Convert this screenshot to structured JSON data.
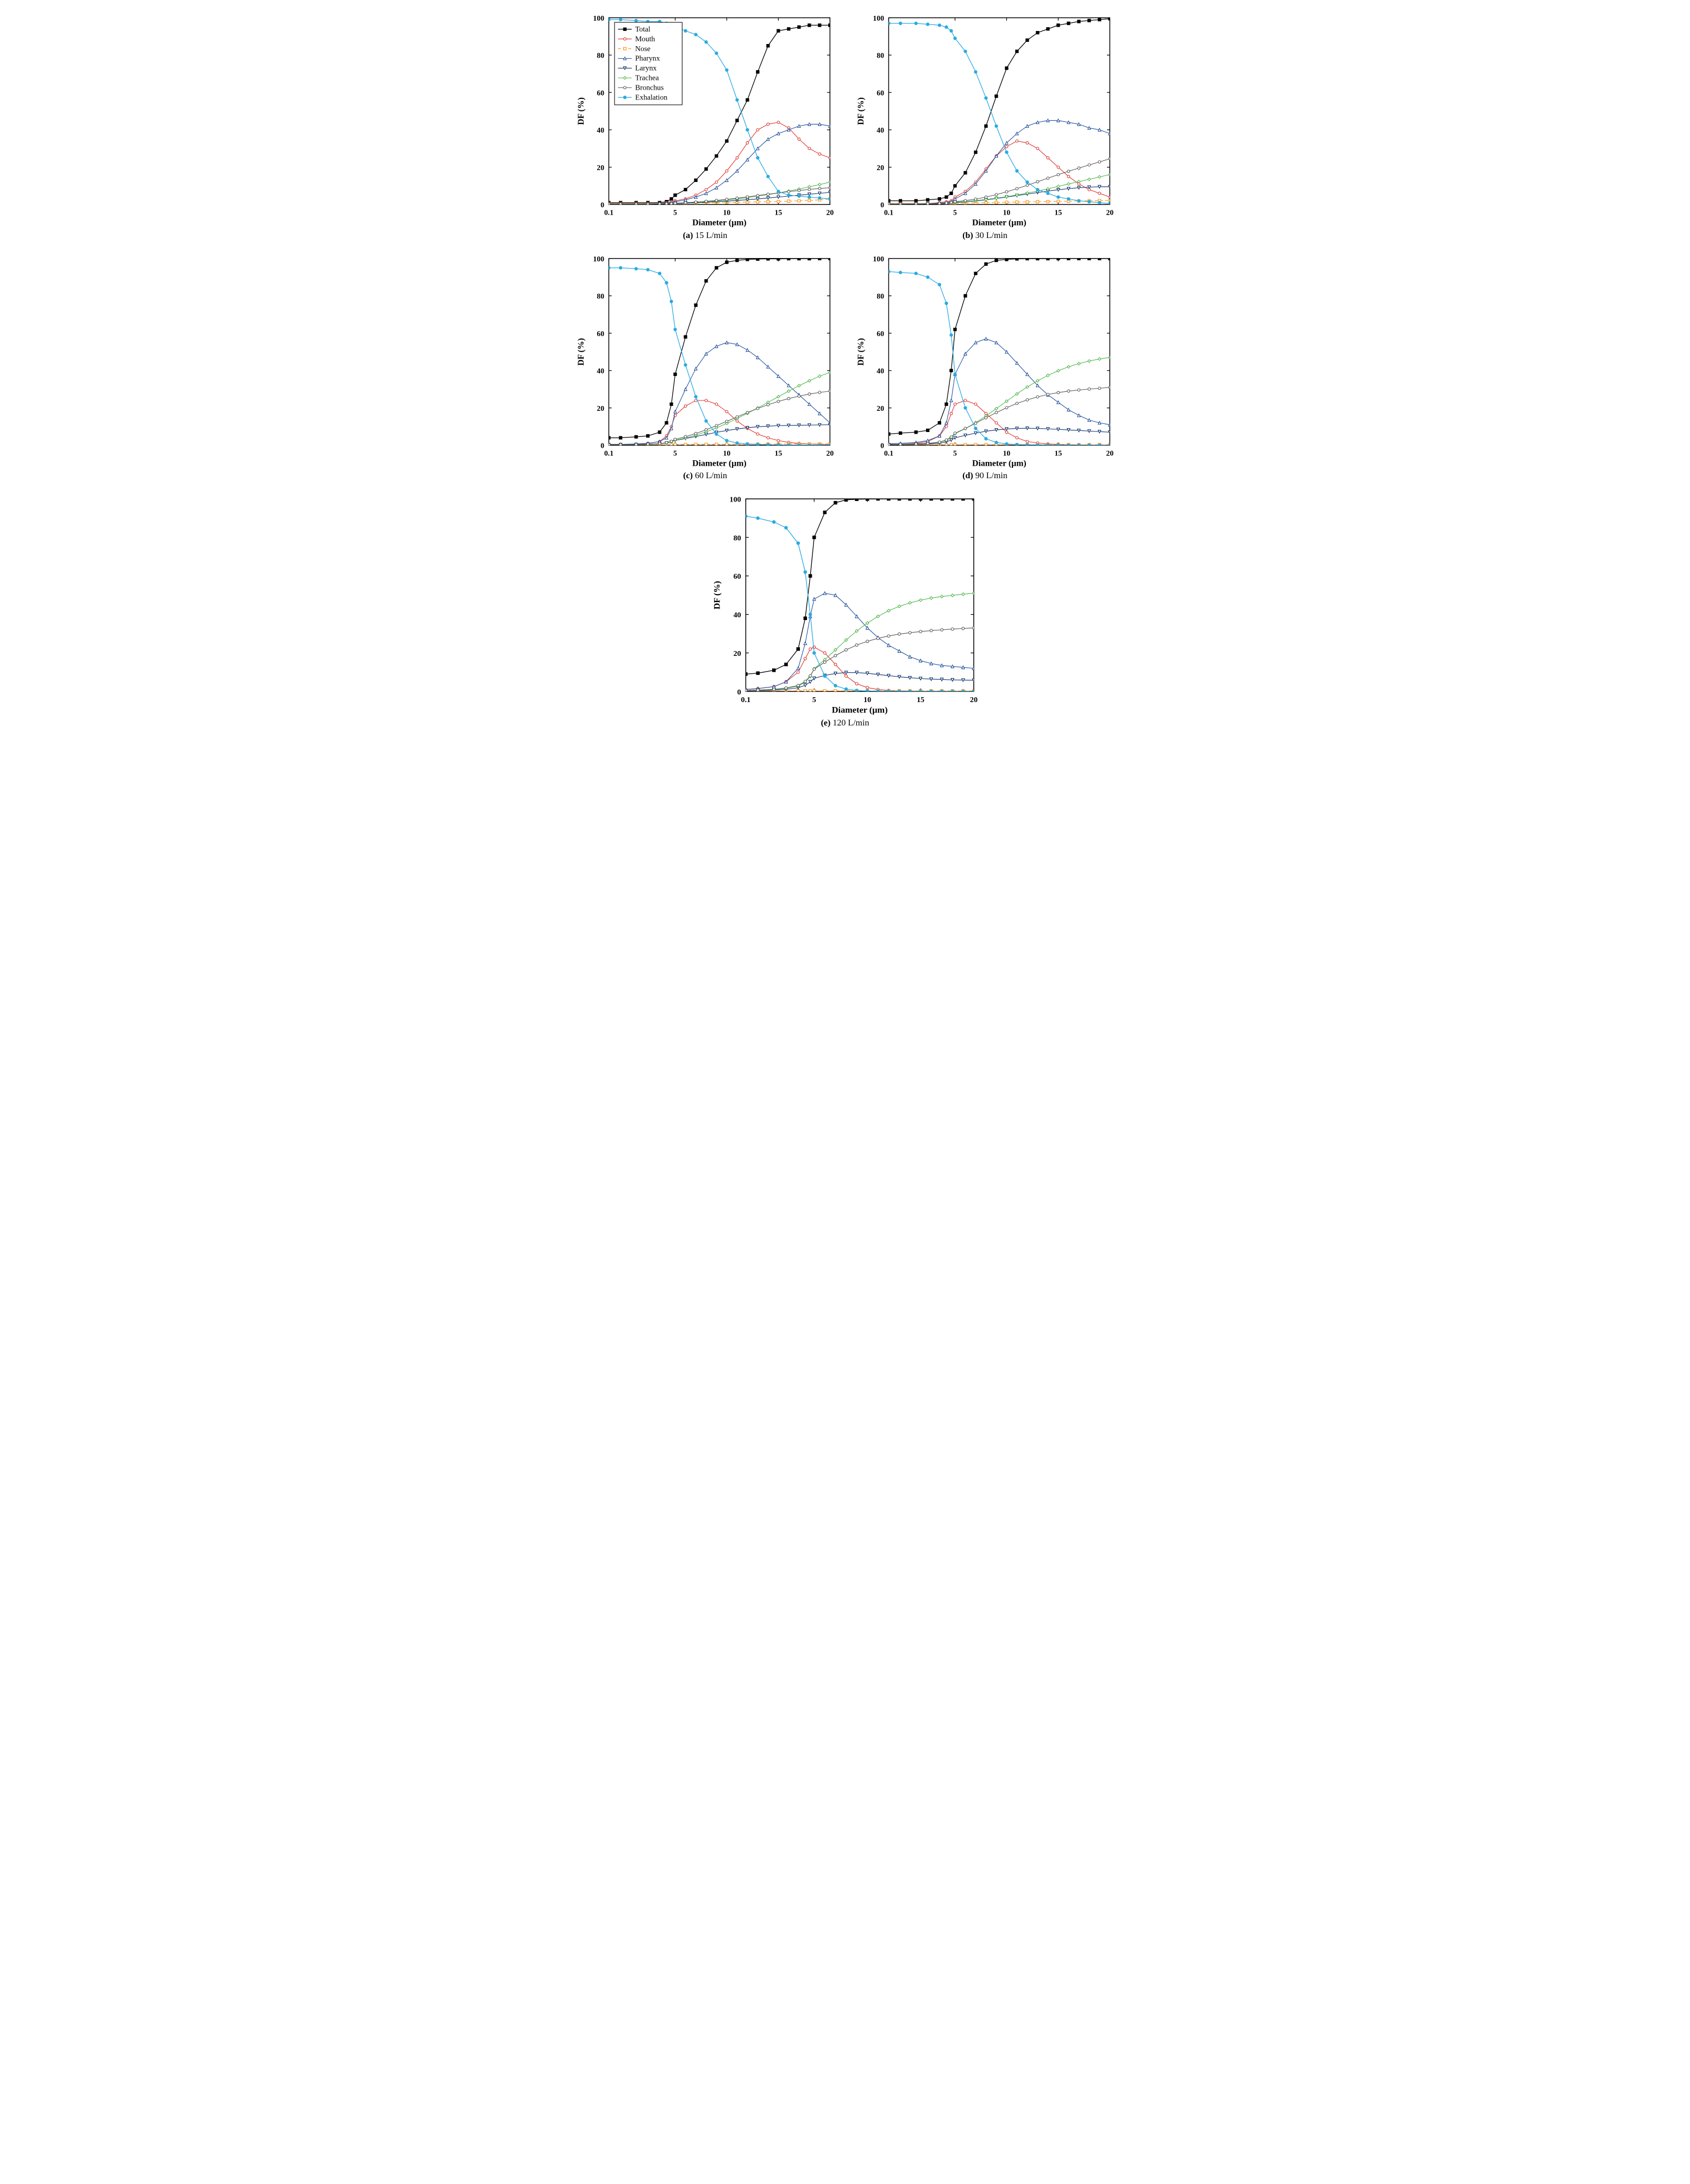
{
  "layout": {
    "grid": [
      2,
      2,
      "center"
    ],
    "panel_aspect": 1.0,
    "background_color": "#ffffff"
  },
  "axes": {
    "xlabel": "Diameter (µm)",
    "ylabel": "DF (%)",
    "label_fontsize": 15,
    "label_fontweight": "bold",
    "tick_fontsize": 13,
    "tick_fontweight": "bold",
    "xscale": "log_custom",
    "x_ticks": [
      0.1,
      5,
      10,
      15,
      20
    ],
    "x_tick_labels": [
      "0.1",
      "5",
      "10",
      "15",
      "20"
    ],
    "ylim": [
      0,
      100
    ],
    "y_ticks": [
      0,
      20,
      40,
      60,
      80,
      100
    ],
    "axis_color": "#000000",
    "axis_linewidth": 1.4,
    "tick_length": 5,
    "tick_direction": "in"
  },
  "series_style": {
    "Total": {
      "color": "#000000",
      "marker": "square-filled",
      "line": "solid",
      "lw": 1.2,
      "ms": 5
    },
    "Mouth": {
      "color": "#de2d26",
      "marker": "circle-open",
      "line": "solid",
      "lw": 1.0,
      "ms": 4.5
    },
    "Nose": {
      "color": "#ff8c00",
      "marker": "square-open",
      "line": "dashed",
      "lw": 1.0,
      "ms": 4.5
    },
    "Pharynx": {
      "color": "#1f4e9c",
      "marker": "triangle-up-open",
      "line": "solid",
      "lw": 1.0,
      "ms": 5
    },
    "Larynx": {
      "color": "#0b2e6b",
      "marker": "triangle-down-open",
      "line": "solid",
      "lw": 1.0,
      "ms": 5
    },
    "Trachea": {
      "color": "#4bb446",
      "marker": "diamond-open",
      "line": "solid",
      "lw": 1.0,
      "ms": 5
    },
    "Bronchus": {
      "color": "#555555",
      "marker": "circle-open",
      "line": "solid",
      "lw": 1.0,
      "ms": 4.5
    },
    "Exhalation": {
      "color": "#29abe2",
      "marker": "circle-filled",
      "line": "solid",
      "lw": 1.2,
      "ms": 5
    }
  },
  "legend": {
    "show_only_in": "a",
    "position": "upper-left",
    "fontsize": 13,
    "box_color": "#000000",
    "box_lw": 1,
    "bg": "#ffffff",
    "items": [
      "Total",
      "Mouth",
      "Nose",
      "Pharynx",
      "Larynx",
      "Trachea",
      "Bronchus",
      "Exhalation"
    ]
  },
  "x_points": [
    0.1,
    0.2,
    0.5,
    1,
    2,
    3,
    4,
    5,
    6,
    7,
    8,
    9,
    10,
    11,
    12,
    13,
    14,
    15,
    16,
    17,
    18,
    19,
    20
  ],
  "panels": {
    "a": {
      "caption_tag": "(a)",
      "caption_text": "15 L/min",
      "series": {
        "Total": [
          1,
          1,
          1,
          1,
          1,
          1.5,
          3,
          5,
          8,
          13,
          19,
          26,
          34,
          45,
          56,
          71,
          85,
          93,
          94,
          95,
          96,
          96,
          96
        ],
        "Mouth": [
          0.5,
          0.5,
          0.5,
          0.5,
          0.5,
          1,
          1.5,
          2,
          3,
          5,
          8,
          12,
          18,
          25,
          33,
          40,
          43,
          44,
          41,
          35,
          30,
          27,
          25
        ],
        "Nose": [
          0.5,
          0.5,
          0.5,
          0.5,
          0.5,
          0.5,
          0.5,
          0.6,
          0.7,
          0.8,
          0.9,
          1,
          1.1,
          1.2,
          1.3,
          1.4,
          1.5,
          1.6,
          1.8,
          2,
          2.2,
          2.5,
          3
        ],
        "Pharynx": [
          0.3,
          0.3,
          0.3,
          0.3,
          0.5,
          0.7,
          1,
          1.5,
          2.5,
          4,
          6,
          9,
          13,
          18,
          24,
          30,
          35,
          38,
          40,
          42,
          43,
          43,
          42
        ],
        "Larynx": [
          0.2,
          0.2,
          0.2,
          0.2,
          0.3,
          0.3,
          0.4,
          0.5,
          0.7,
          0.9,
          1.2,
          1.5,
          1.8,
          2.2,
          2.6,
          3,
          3.5,
          4,
          4.5,
          5,
          5.5,
          6,
          6.5
        ],
        "Trachea": [
          0.2,
          0.2,
          0.2,
          0.2,
          0.3,
          0.4,
          0.5,
          0.7,
          0.9,
          1.2,
          1.5,
          1.9,
          2.4,
          3,
          3.7,
          4.5,
          5.3,
          6.2,
          7.2,
          8.3,
          9.5,
          10.7,
          12
        ],
        "Bronchus": [
          0.2,
          0.2,
          0.2,
          0.2,
          0.3,
          0.4,
          0.5,
          0.7,
          1,
          1.3,
          1.7,
          2.2,
          2.8,
          3.4,
          4.1,
          4.8,
          5.5,
          6.2,
          6.9,
          7.5,
          8.1,
          8.6,
          9
        ],
        "Exhalation": [
          99,
          99,
          98.5,
          98,
          98,
          97,
          96,
          95,
          93,
          91,
          87,
          81,
          72,
          56,
          40,
          25,
          15,
          7,
          5,
          4.5,
          4,
          3.5,
          3
        ]
      }
    },
    "b": {
      "caption_tag": "(b)",
      "caption_text": "30 L/min",
      "series": {
        "Total": [
          2,
          2,
          2,
          2.5,
          3,
          4,
          6,
          10,
          17,
          28,
          42,
          58,
          73,
          82,
          88,
          92,
          94,
          96,
          97,
          98,
          98.5,
          99,
          99.5
        ],
        "Mouth": [
          0.5,
          0.5,
          0.5,
          0.5,
          1,
          1.5,
          2,
          4,
          7,
          12,
          19,
          26,
          31,
          34,
          33,
          30,
          25,
          20,
          15,
          11,
          8,
          6,
          4
        ],
        "Nose": [
          0.5,
          0.5,
          0.5,
          0.5,
          0.5,
          0.5,
          0.6,
          0.7,
          0.8,
          0.9,
          1,
          1.1,
          1.2,
          1.3,
          1.4,
          1.5,
          1.6,
          1.7,
          1.8,
          1.9,
          2,
          2.1,
          2.2
        ],
        "Pharynx": [
          0.3,
          0.3,
          0.3,
          0.5,
          0.7,
          1,
          1.5,
          3,
          6,
          11,
          18,
          26,
          33,
          38,
          42,
          44,
          45,
          45,
          44,
          43,
          41,
          40,
          38
        ],
        "Larynx": [
          0.2,
          0.2,
          0.2,
          0.3,
          0.4,
          0.5,
          0.7,
          1,
          1.4,
          1.9,
          2.5,
          3.2,
          4,
          4.8,
          5.6,
          6.4,
          7.2,
          7.9,
          8.5,
          9,
          9.3,
          9.5,
          9.5
        ],
        "Trachea": [
          0.2,
          0.2,
          0.3,
          0.4,
          0.5,
          0.7,
          0.9,
          1.2,
          1.6,
          2.1,
          2.7,
          3.4,
          4.2,
          5.1,
          6.1,
          7.2,
          8.4,
          9.7,
          11,
          12.3,
          13.5,
          14.8,
          16
        ],
        "Bronchus": [
          0.2,
          0.2,
          0.3,
          0.4,
          0.6,
          0.8,
          1.1,
          1.5,
          2.1,
          2.9,
          4,
          5.3,
          6.8,
          8.5,
          10.3,
          12.2,
          14.1,
          16,
          17.8,
          19.5,
          21.2,
          22.8,
          24.5
        ],
        "Exhalation": [
          97,
          97,
          97,
          96.5,
          96,
          95,
          93,
          89,
          82,
          71,
          57,
          42,
          28,
          18,
          12,
          8,
          6,
          4,
          3,
          2,
          1.5,
          1,
          0.5
        ]
      }
    },
    "c": {
      "caption_tag": "(c)",
      "caption_text": "60 L/min",
      "series": {
        "Total": [
          4,
          4,
          4.5,
          5,
          7,
          12,
          22,
          38,
          58,
          75,
          88,
          95,
          98,
          99,
          99.5,
          99.7,
          99.8,
          99.8,
          99.9,
          99.9,
          99.9,
          100,
          100
        ],
        "Mouth": [
          0.5,
          0.5,
          0.5,
          1,
          2,
          5,
          10,
          16,
          21,
          24,
          24,
          22,
          18,
          13,
          9,
          6,
          4,
          2.5,
          1.5,
          1,
          0.7,
          0.5,
          0.3
        ],
        "Nose": [
          0.3,
          0.3,
          0.3,
          0.3,
          0.3,
          0.3,
          0.4,
          0.4,
          0.4,
          0.5,
          0.5,
          0.5,
          0.5,
          0.6,
          0.6,
          0.6,
          0.6,
          0.6,
          0.7,
          0.7,
          0.7,
          0.7,
          0.7
        ],
        "Pharynx": [
          0.5,
          0.5,
          0.7,
          1,
          2,
          4,
          9,
          18,
          30,
          41,
          49,
          53,
          55,
          54,
          51,
          47,
          42,
          37,
          32,
          27,
          22,
          17,
          12
        ],
        "Larynx": [
          0.3,
          0.3,
          0.4,
          0.5,
          0.8,
          1.2,
          1.8,
          2.6,
          3.6,
          4.7,
          5.8,
          6.9,
          7.9,
          8.7,
          9.4,
          9.9,
          10.2,
          10.5,
          10.6,
          10.7,
          10.8,
          10.9,
          11
        ],
        "Trachea": [
          0.3,
          0.3,
          0.4,
          0.5,
          0.8,
          1.2,
          1.8,
          2.7,
          3.9,
          5.4,
          7.2,
          9.3,
          11.7,
          14.3,
          17.1,
          20,
          23,
          26,
          29,
          31.9,
          34.5,
          37,
          39
        ],
        "Bronchus": [
          0.3,
          0.3,
          0.4,
          0.6,
          0.9,
          1.4,
          2.1,
          3.2,
          4.6,
          6.3,
          8.3,
          10.5,
          12.8,
          15.2,
          17.5,
          19.7,
          21.7,
          23.5,
          25,
          26.3,
          27.4,
          28.3,
          29
        ],
        "Exhalation": [
          95,
          95,
          94.5,
          94,
          92,
          87,
          77,
          62,
          43,
          26,
          13,
          6,
          2.5,
          1.2,
          0.7,
          0.5,
          0.3,
          0.2,
          0.15,
          0.12,
          0.1,
          0.08,
          0.05
        ]
      }
    },
    "d": {
      "caption_tag": "(d)",
      "caption_text": "90 L/min",
      "series": {
        "Total": [
          6,
          6.5,
          7,
          8,
          12,
          22,
          40,
          62,
          80,
          92,
          97,
          99,
          99.5,
          99.8,
          99.9,
          99.9,
          99.9,
          100,
          100,
          100,
          100,
          100,
          100
        ],
        "Mouth": [
          0.5,
          0.5,
          1,
          2,
          5,
          10,
          17,
          22,
          24,
          22,
          17,
          12,
          7,
          4,
          2,
          1.2,
          0.7,
          0.5,
          0.3,
          0.2,
          0.15,
          0.1,
          0.05
        ],
        "Nose": [
          0.3,
          0.3,
          0.3,
          0.3,
          0.3,
          0.3,
          0.3,
          0.3,
          0.3,
          0.3,
          0.3,
          0.3,
          0.3,
          0.3,
          0.3,
          0.3,
          0.3,
          0.3,
          0.3,
          0.3,
          0.3,
          0.3,
          0.3
        ],
        "Pharynx": [
          0.8,
          1,
          1.5,
          2.5,
          5,
          12,
          24,
          38,
          49,
          55,
          57,
          55,
          50,
          44,
          38,
          32,
          27,
          23,
          19,
          16,
          13.5,
          12,
          11
        ],
        "Larynx": [
          0.3,
          0.4,
          0.5,
          0.7,
          1.1,
          1.8,
          2.8,
          4,
          5.3,
          6.5,
          7.5,
          8.2,
          8.7,
          9,
          9.1,
          9,
          8.8,
          8.5,
          8.2,
          7.9,
          7.6,
          7.3,
          7
        ],
        "Trachea": [
          0.4,
          0.5,
          0.7,
          1,
          1.6,
          2.6,
          4.1,
          6.2,
          8.9,
          12.1,
          15.7,
          19.6,
          23.6,
          27.5,
          31.2,
          34.5,
          37.4,
          39.9,
          42,
          43.7,
          45.1,
          46.2,
          47
        ],
        "Bronchus": [
          0.4,
          0.5,
          0.7,
          1,
          1.7,
          2.8,
          4.4,
          6.5,
          9,
          11.8,
          14.7,
          17.5,
          20.1,
          22.4,
          24.3,
          25.9,
          27.2,
          28.2,
          29,
          29.6,
          30.1,
          30.5,
          31
        ],
        "Exhalation": [
          93,
          92.5,
          92,
          90,
          86,
          76,
          59,
          38,
          20,
          9,
          3.5,
          1.5,
          0.7,
          0.4,
          0.25,
          0.18,
          0.12,
          0.08,
          0.06,
          0.05,
          0.04,
          0.03,
          0.02
        ]
      }
    },
    "e": {
      "caption_tag": "(e)",
      "caption_text": "120 L/min",
      "series": {
        "Total": [
          9,
          9.5,
          11,
          14,
          22,
          38,
          60,
          80,
          93,
          98,
          99.5,
          99.8,
          99.9,
          100,
          100,
          100,
          100,
          100,
          100,
          100,
          100,
          100,
          100
        ],
        "Mouth": [
          1,
          1.5,
          2.5,
          5,
          10,
          17,
          22,
          23,
          20,
          14,
          8,
          4,
          2,
          1,
          0.5,
          0.3,
          0.2,
          0.1,
          0.08,
          0.06,
          0.05,
          0.04,
          0.03
        ],
        "Nose": [
          0.3,
          0.3,
          0.3,
          0.3,
          0.3,
          0.3,
          0.3,
          0.3,
          0.3,
          0.3,
          0.3,
          0.3,
          0.3,
          0.3,
          0.3,
          0.3,
          0.3,
          0.3,
          0.3,
          0.3,
          0.3,
          0.3,
          0.3
        ],
        "Pharynx": [
          1,
          1.5,
          2.5,
          5,
          12,
          25,
          39,
          48,
          51,
          50,
          45,
          39,
          33,
          28,
          24,
          21,
          18,
          16,
          14.5,
          13.5,
          13,
          12.5,
          12
        ],
        "Larynx": [
          0.4,
          0.5,
          0.7,
          1.1,
          1.9,
          3.2,
          5,
          6.8,
          8.3,
          9.3,
          9.8,
          9.8,
          9.4,
          8.8,
          8.2,
          7.6,
          7.1,
          6.7,
          6.4,
          6.2,
          6,
          5.9,
          5.8
        ],
        "Trachea": [
          0.5,
          0.7,
          1,
          1.6,
          2.8,
          4.8,
          7.8,
          11.8,
          16.5,
          21.6,
          26.7,
          31.4,
          35.5,
          39,
          41.9,
          44.2,
          46,
          47.4,
          48.5,
          49.3,
          49.9,
          50.5,
          51
        ],
        "Bronchus": [
          0.5,
          0.7,
          1.1,
          1.8,
          3.1,
          5.2,
          8.1,
          11.6,
          15.2,
          18.6,
          21.6,
          24.1,
          26,
          27.6,
          28.8,
          29.8,
          30.5,
          31.1,
          31.6,
          32,
          32.4,
          32.7,
          33
        ],
        "Exhalation": [
          91,
          90,
          88,
          85,
          77,
          62,
          40,
          20,
          8,
          3,
          1.2,
          0.5,
          0.25,
          0.15,
          0.1,
          0.07,
          0.05,
          0.04,
          0.03,
          0.025,
          0.02,
          0.015,
          0.01
        ]
      }
    }
  }
}
